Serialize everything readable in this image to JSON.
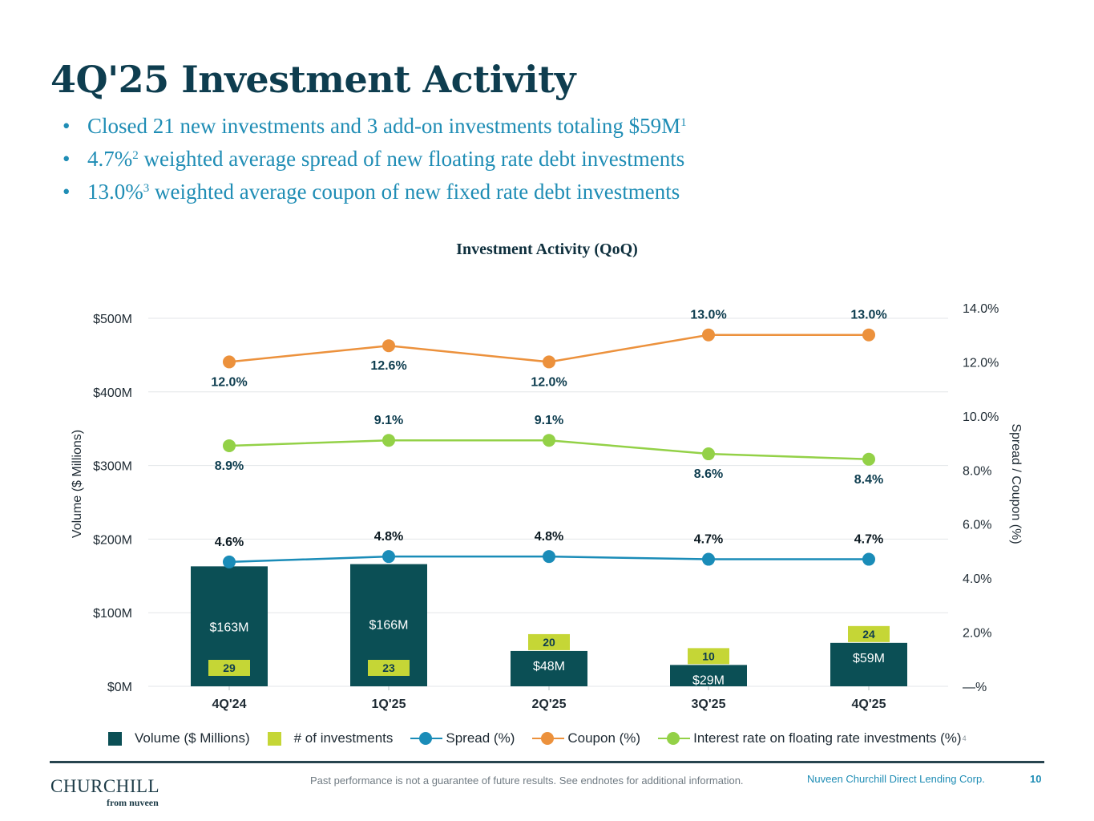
{
  "slide": {
    "title": "4Q'25 Investment Activity",
    "bullets": [
      {
        "text": "Closed 21 new investments and 3 add-on investments totaling $59M",
        "note": "1"
      },
      {
        "text": "4.7%",
        "note": "2",
        "rest": " weighted average spread of new floating rate debt investments"
      },
      {
        "text": "13.0%",
        "note": "3",
        "rest": " weighted average coupon of new fixed rate debt investments"
      }
    ]
  },
  "chart_data": {
    "type": "bar",
    "title": "Investment Activity (QoQ)",
    "ylabel": "Volume ($ Millions)",
    "y2label": "Spread / Coupon (%)",
    "ylim": [
      0,
      500
    ],
    "y2lim": [
      0,
      14
    ],
    "y_ticks": [
      {
        "value": 500,
        "label": "$500M"
      },
      {
        "value": 400,
        "label": "$400M"
      },
      {
        "value": 300,
        "label": "$300M"
      },
      {
        "value": 200,
        "label": "$200M"
      },
      {
        "value": 100,
        "label": "$100M"
      },
      {
        "value": 0,
        "label": "$0M"
      }
    ],
    "y2_ticks": [
      {
        "value": 14,
        "label": "14.0%"
      },
      {
        "value": 12,
        "label": "12.0%"
      },
      {
        "value": 10,
        "label": "10.0%"
      },
      {
        "value": 8,
        "label": "8.0%"
      },
      {
        "value": 6,
        "label": "6.0%"
      },
      {
        "value": 4,
        "label": "4.0%"
      },
      {
        "value": 2,
        "label": "2.0%"
      },
      {
        "value": 0,
        "label": "—%"
      }
    ],
    "categories": [
      "4Q'24",
      "1Q'25",
      "2Q'25",
      "3Q'25",
      "4Q'25"
    ],
    "series": [
      {
        "name": "Volume ($ Millions)",
        "kind": "bar",
        "color": "#0b4f55",
        "values": [
          163,
          166,
          48,
          29,
          59
        ],
        "labels": [
          "$163M",
          "$166M",
          "$48M",
          "$29M",
          "$59M"
        ]
      },
      {
        "name": "# of investments",
        "kind": "badge",
        "color": "#c5d636",
        "values": [
          29,
          23,
          20,
          10,
          24
        ],
        "labels": [
          "29",
          "23",
          "20",
          "10",
          "24"
        ]
      },
      {
        "name": "Spread (%)",
        "kind": "line",
        "color": "#1a8cb8",
        "values": [
          4.6,
          4.8,
          4.8,
          4.7,
          4.7
        ],
        "labels": [
          "4.6%",
          "4.8%",
          "4.8%",
          "4.7%",
          "4.7%"
        ]
      },
      {
        "name": "Coupon (%)",
        "kind": "line",
        "color": "#ec913c",
        "values": [
          12.0,
          12.6,
          12.0,
          13.0,
          13.0
        ],
        "labels": [
          "12.0%",
          "12.6%",
          "12.0%",
          "13.0%",
          "13.0%"
        ]
      },
      {
        "name": "Interest rate on floating rate investments (%)",
        "kind": "line",
        "color": "#93d147",
        "values": [
          8.9,
          9.1,
          9.1,
          8.6,
          8.4
        ],
        "labels": [
          "8.9%",
          "9.1%",
          "9.1%",
          "8.6%",
          "8.4%"
        ],
        "note": "4"
      }
    ]
  },
  "footer": {
    "logo_main": "CHURCHILL",
    "logo_sub": "from nuveen",
    "disclaimer": "Past performance is not a guarantee of future results. See endnotes for additional information.",
    "company": "Nuveen Churchill Direct Lending Corp.",
    "page": "10"
  },
  "colors": {
    "title": "#0e3d4f",
    "accent": "#1f8db5",
    "grid": "#e3e6e8",
    "axis_text": "#1e2a33"
  }
}
